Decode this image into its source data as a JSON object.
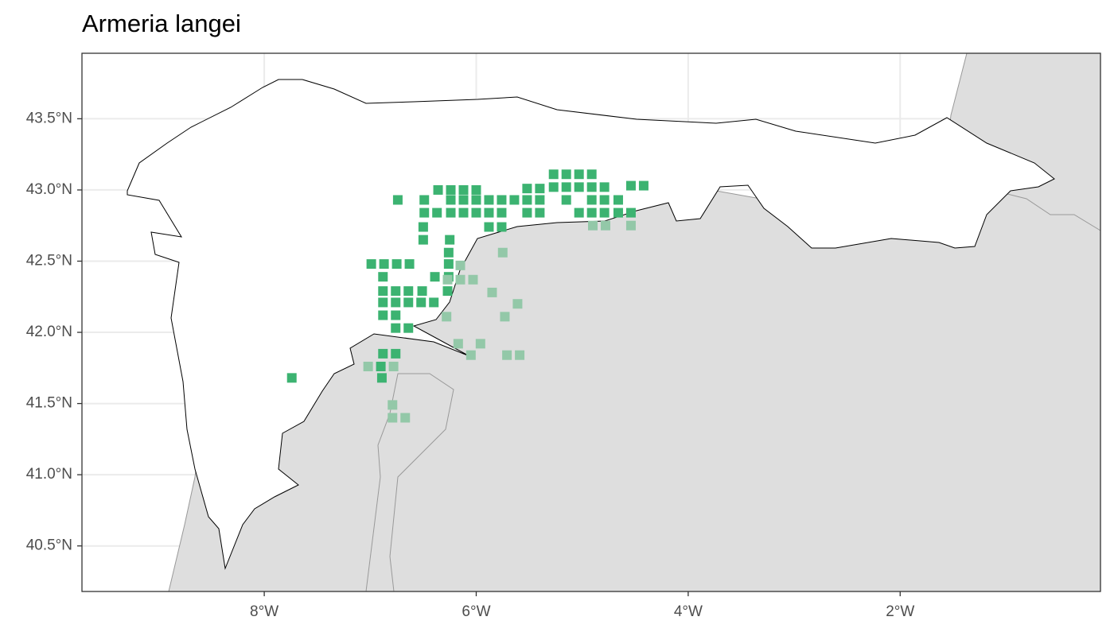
{
  "chart_data": {
    "type": "scatter",
    "title": "Armeria langei",
    "xlim": [
      -9.72,
      -0.11
    ],
    "ylim": [
      40.18,
      43.96
    ],
    "xticks": [
      {
        "value": -8,
        "label": "8°W"
      },
      {
        "value": -6,
        "label": "6°W"
      },
      {
        "value": -4,
        "label": "4°W"
      },
      {
        "value": -2,
        "label": "2°W"
      }
    ],
    "yticks": [
      {
        "value": 40.5,
        "label": "40.5°N"
      },
      {
        "value": 41.0,
        "label": "41.0°N"
      },
      {
        "value": 41.5,
        "label": "41.5°N"
      },
      {
        "value": 42.0,
        "label": "42.0°N"
      },
      {
        "value": 42.5,
        "label": "42.5°N"
      },
      {
        "value": 43.0,
        "label": "43.0°N"
      },
      {
        "value": 43.5,
        "label": "43.5°N"
      }
    ],
    "grid": true,
    "series": [
      {
        "color": "#3cb371",
        "x": [
          -5.27,
          -5.15,
          -5.03,
          -4.91,
          -6.36,
          -6.24,
          -6.12,
          -6.0,
          -5.52,
          -5.4,
          -5.27,
          -5.15,
          -5.03,
          -4.91,
          -4.79,
          -4.54,
          -4.42,
          -6.74,
          -6.49,
          -6.24,
          -6.12,
          -6.0,
          -5.88,
          -5.76,
          -5.64,
          -5.52,
          -5.4,
          -5.15,
          -4.91,
          -4.79,
          -4.66,
          -6.49,
          -6.37,
          -6.24,
          -6.12,
          -6.0,
          -5.88,
          -5.76,
          -5.52,
          -5.4,
          -5.03,
          -4.91,
          -4.79,
          -4.66,
          -4.54,
          -6.5,
          -5.88,
          -5.76,
          -6.5,
          -6.25,
          -6.26,
          -6.99,
          -6.87,
          -6.75,
          -6.63,
          -6.26,
          -6.88,
          -6.39,
          -6.26,
          -6.88,
          -6.76,
          -6.64,
          -6.51,
          -6.27,
          -6.88,
          -6.76,
          -6.64,
          -6.52,
          -6.4,
          -6.88,
          -6.76,
          -6.76,
          -6.64,
          -6.88,
          -6.76,
          -6.9,
          -7.74,
          -6.89
        ],
        "y": [
          43.11,
          43.11,
          43.11,
          43.11,
          43.0,
          43.0,
          43.0,
          43.0,
          43.01,
          43.01,
          43.02,
          43.02,
          43.02,
          43.02,
          43.02,
          43.03,
          43.03,
          42.93,
          42.93,
          42.93,
          42.93,
          42.93,
          42.93,
          42.93,
          42.93,
          42.93,
          42.93,
          42.93,
          42.93,
          42.93,
          42.93,
          42.84,
          42.84,
          42.84,
          42.84,
          42.84,
          42.84,
          42.84,
          42.84,
          42.84,
          42.84,
          42.84,
          42.84,
          42.84,
          42.84,
          42.74,
          42.74,
          42.74,
          42.65,
          42.65,
          42.56,
          42.48,
          42.48,
          42.48,
          42.48,
          42.48,
          42.39,
          42.39,
          42.39,
          42.29,
          42.29,
          42.29,
          42.29,
          42.29,
          42.21,
          42.21,
          42.21,
          42.21,
          42.21,
          42.12,
          42.12,
          42.03,
          42.03,
          41.85,
          41.85,
          41.76,
          41.68,
          41.68
        ]
      },
      {
        "color": "#93c8a8",
        "x": [
          -4.9,
          -4.78,
          -4.54,
          -5.75,
          -6.15,
          -6.27,
          -6.15,
          -6.03,
          -5.85,
          -5.61,
          -6.28,
          -5.73,
          -6.17,
          -5.96,
          -6.05,
          -5.71,
          -5.59,
          -7.02,
          -6.78,
          -6.79,
          -6.79,
          -6.67
        ],
        "y": [
          42.75,
          42.75,
          42.75,
          42.56,
          42.47,
          42.37,
          42.37,
          42.37,
          42.28,
          42.2,
          42.11,
          42.11,
          41.92,
          41.92,
          41.84,
          41.84,
          41.84,
          41.76,
          41.76,
          41.49,
          41.4,
          41.4
        ]
      }
    ]
  }
}
